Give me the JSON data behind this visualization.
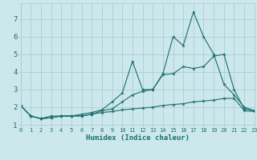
{
  "title": "",
  "xlabel": "Humidex (Indice chaleur)",
  "background_color": "#cce8ec",
  "grid_color": "#aacdd4",
  "line_color": "#1a6e6a",
  "x_values": [
    0,
    1,
    2,
    3,
    4,
    5,
    6,
    7,
    8,
    9,
    10,
    11,
    12,
    13,
    14,
    15,
    16,
    17,
    18,
    19,
    20,
    21,
    22,
    23
  ],
  "series1": [
    2.1,
    1.5,
    1.35,
    1.5,
    1.5,
    1.5,
    1.6,
    1.7,
    1.85,
    2.3,
    2.8,
    4.6,
    3.0,
    3.0,
    3.9,
    6.0,
    5.5,
    7.4,
    6.0,
    5.0,
    3.3,
    2.7,
    2.0,
    1.8
  ],
  "series2": [
    2.1,
    1.5,
    1.35,
    1.4,
    1.5,
    1.5,
    1.5,
    1.6,
    1.8,
    1.9,
    2.3,
    2.7,
    2.9,
    3.0,
    3.85,
    3.9,
    4.3,
    4.2,
    4.3,
    4.9,
    5.0,
    3.0,
    1.9,
    1.8
  ],
  "series3": [
    2.1,
    1.5,
    1.35,
    1.4,
    1.5,
    1.5,
    1.5,
    1.6,
    1.7,
    1.75,
    1.85,
    1.9,
    1.95,
    2.0,
    2.1,
    2.15,
    2.2,
    2.3,
    2.35,
    2.4,
    2.5,
    2.5,
    1.8,
    1.75
  ],
  "ylim": [
    1.0,
    7.9
  ],
  "xlim": [
    0,
    23
  ],
  "yticks": [
    1,
    2,
    3,
    4,
    5,
    6,
    7
  ],
  "xticks": [
    0,
    1,
    2,
    3,
    4,
    5,
    6,
    7,
    8,
    9,
    10,
    11,
    12,
    13,
    14,
    15,
    16,
    17,
    18,
    19,
    20,
    21,
    22,
    23
  ]
}
